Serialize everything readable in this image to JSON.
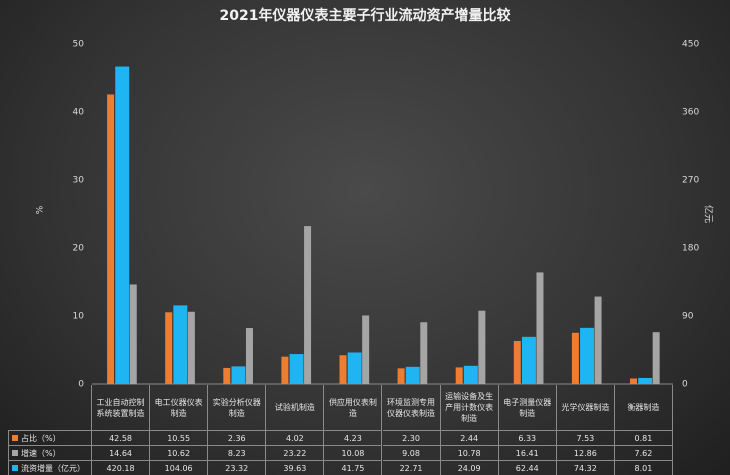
{
  "chart_data": {
    "type": "bar",
    "title": "2021年仪器仪表主要子行业流动资产增量比较",
    "y_label": "%",
    "y2_label": "亿元",
    "categories": [
      "工业自动控制系统装置制造",
      "电工仪器仪表制造",
      "实验分析仪器制造",
      "试验机制造",
      "供应用仪表制造",
      "环境监测专用仪器仪表制造",
      "运输设备及生产用计数仪表制造",
      "电子测量仪器制造",
      "光学仪器制造",
      "衡器制造"
    ],
    "series": [
      {
        "name": "占比（%）",
        "color": "#ed7d31",
        "values": [
          42.58,
          10.55,
          2.36,
          4.02,
          4.23,
          2.3,
          2.44,
          6.33,
          7.53,
          0.81
        ],
        "value_labels": [
          "42.58",
          "10.55",
          "2.36",
          "4.02",
          "4.23",
          "2.30",
          "2.44",
          "6.33",
          "7.53",
          "0.81"
        ]
      },
      {
        "name": "增速（%）",
        "color": "#a5a5a5",
        "values": [
          14.64,
          10.62,
          8.23,
          23.22,
          10.08,
          9.08,
          10.78,
          16.41,
          12.86,
          7.62
        ],
        "value_labels": [
          "14.64",
          "10.62",
          "8.23",
          "23.22",
          "10.08",
          "9.08",
          "10.78",
          "16.41",
          "12.86",
          "7.62"
        ]
      },
      {
        "name": "流资增量（亿元）",
        "color": "#1fb4f2",
        "axis": "y2",
        "values": [
          420.18,
          104.06,
          23.32,
          39.63,
          41.75,
          22.71,
          24.09,
          62.44,
          74.32,
          8.01
        ],
        "value_labels": [
          "420.18",
          "104.06",
          "23.32",
          "39.63",
          "41.75",
          "22.71",
          "24.09",
          "62.44",
          "74.32",
          "8.01"
        ]
      }
    ],
    "ylim": [
      0,
      50
    ],
    "yticks": [
      0,
      10,
      20,
      30,
      40,
      50
    ],
    "y2lim": [
      0,
      450
    ],
    "y2ticks": [
      0,
      90,
      180,
      270,
      360,
      450
    ],
    "grid": false
  }
}
